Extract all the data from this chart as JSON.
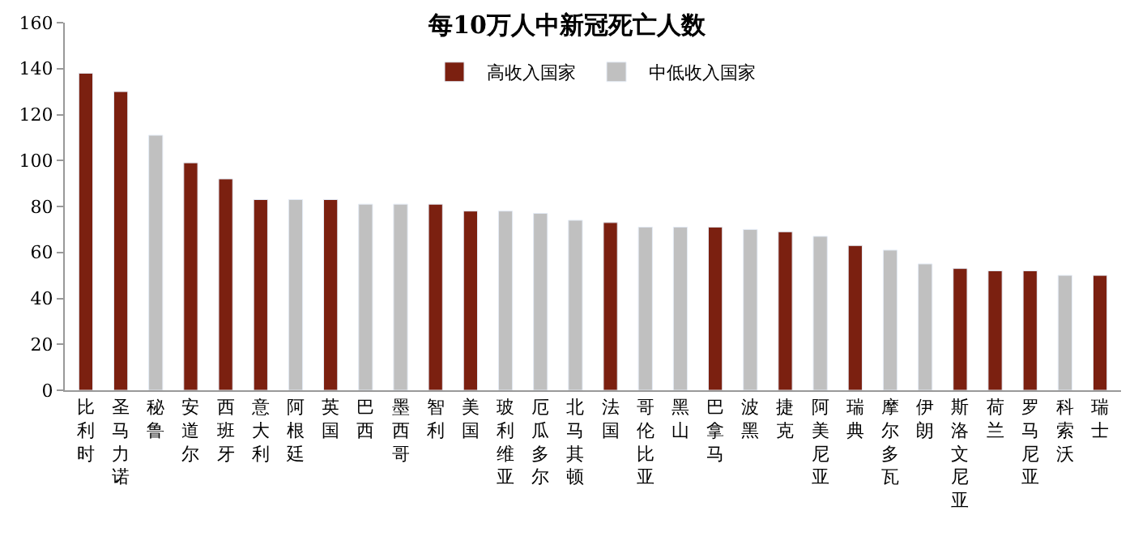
{
  "chart_data": {
    "type": "bar",
    "title": "每10万人中新冠死亡人数",
    "categories": [
      "比利时",
      "圣马力诺",
      "秘鲁",
      "安道尔",
      "西班牙",
      "意大利",
      "阿根廷",
      "英国",
      "巴西",
      "墨西哥",
      "智利",
      "美国",
      "玻利维亚",
      "厄瓜多尔",
      "北马其顿",
      "法国",
      "哥伦比亚",
      "黑山",
      "巴拿马",
      "波黑",
      "捷克",
      "阿美尼亚",
      "瑞典",
      "摩尔多瓦",
      "伊朗",
      "斯洛文尼亚",
      "荷兰",
      "罗马尼亚",
      "科索沃",
      "瑞士"
    ],
    "series": [
      {
        "name": "高收入国家",
        "color": "#7b2010",
        "values": [
          138,
          130,
          null,
          99,
          92,
          83,
          null,
          83,
          null,
          null,
          81,
          78,
          null,
          null,
          null,
          73,
          null,
          null,
          71,
          null,
          69,
          null,
          63,
          null,
          null,
          53,
          52,
          52,
          null,
          50
        ]
      },
      {
        "name": "中低收入国家",
        "color": "#c0c0c0",
        "values": [
          null,
          null,
          111,
          null,
          null,
          null,
          83,
          null,
          81,
          81,
          null,
          null,
          78,
          77,
          74,
          null,
          71,
          71,
          null,
          70,
          null,
          67,
          null,
          61,
          55,
          null,
          null,
          null,
          50,
          null
        ]
      }
    ],
    "ylim": [
      0,
      160
    ],
    "yticks": [
      0,
      20,
      40,
      60,
      80,
      100,
      120,
      140,
      160
    ],
    "legend": "top"
  }
}
